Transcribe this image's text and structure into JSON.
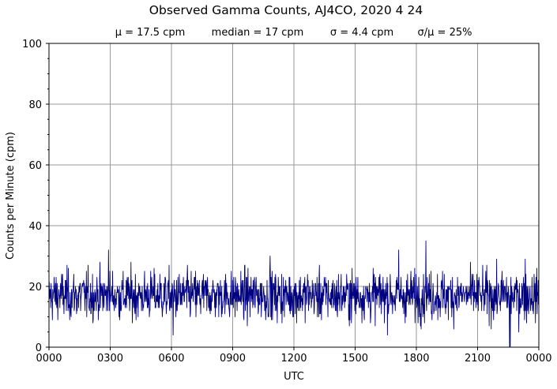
{
  "chart_data": {
    "type": "line",
    "title": "Observed Gamma Counts, AJ4CO, 2020 4 24",
    "subtitle": {
      "mean": "μ = 17.5 cpm",
      "median": "median = 17 cpm",
      "sigma": "σ = 4.4 cpm",
      "ratio": "σ/μ = 25%"
    },
    "xlabel": "UTC",
    "ylabel": "Counts per Minute (cpm)",
    "xlim_minutes": [
      0,
      1440
    ],
    "ylim": [
      0,
      100
    ],
    "x_tick_labels": [
      "0000",
      "0300",
      "0600",
      "0900",
      "1200",
      "1500",
      "1800",
      "2100",
      "0000"
    ],
    "y_tick_labels": [
      "0",
      "20",
      "40",
      "60",
      "80",
      "100"
    ],
    "grid": true,
    "line_color": "#000080",
    "stats": {
      "mean_cpm": 17.5,
      "median_cpm": 17,
      "sigma_cpm": 4.4,
      "sigma_over_mean_pct": 25
    },
    "sampling": "1 value per minute",
    "notable_points": [
      {
        "utc": "0255",
        "cpm": 32
      },
      {
        "utc": "0605",
        "cpm": 4
      },
      {
        "utc": "1050",
        "cpm": 30
      },
      {
        "utc": "1708",
        "cpm": 32
      },
      {
        "utc": "1828",
        "cpm": 35
      },
      {
        "utc": "2234",
        "cpm": 0
      },
      {
        "utc": "2236",
        "cpm": 0
      },
      {
        "utc": "2320",
        "cpm": 29
      }
    ]
  }
}
